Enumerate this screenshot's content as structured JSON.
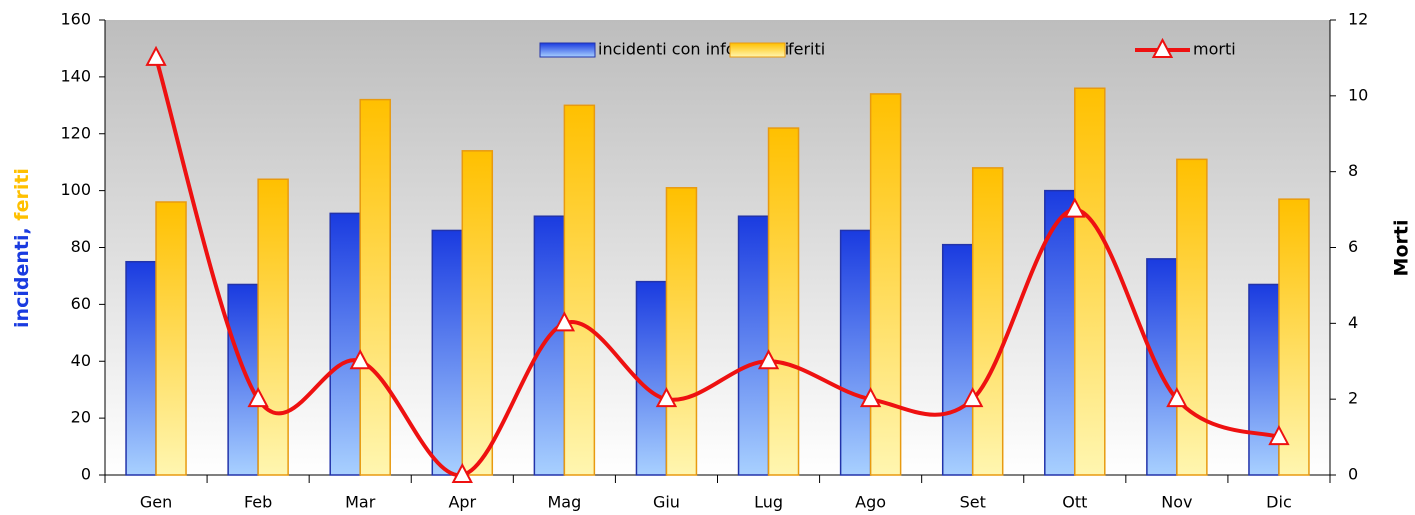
{
  "chart_data": {
    "type": "bar",
    "categories": [
      "Gen",
      "Feb",
      "Mar",
      "Apr",
      "Mag",
      "Giu",
      "Lug",
      "Ago",
      "Set",
      "Ott",
      "Nov",
      "Dic"
    ],
    "series": [
      {
        "name": "incidenti con infortunati",
        "color": "#1a3be0",
        "type": "bar",
        "values": [
          75,
          67,
          92,
          86,
          91,
          68,
          91,
          86,
          81,
          100,
          76,
          67
        ]
      },
      {
        "name": "feriti",
        "color": "#ffc000",
        "type": "bar",
        "values": [
          96,
          104,
          132,
          114,
          130,
          101,
          122,
          134,
          108,
          136,
          111,
          97
        ]
      },
      {
        "name": "morti",
        "color": "#ee1111",
        "type": "line",
        "axis": "y2",
        "values": [
          11,
          2,
          3,
          0,
          4,
          2,
          3,
          2,
          2,
          7,
          2,
          1
        ]
      }
    ],
    "y_label": [
      "incidenti,",
      "feriti"
    ],
    "y2_label": "Morti",
    "ylim": [
      0,
      160
    ],
    "yticks": [
      0,
      20,
      40,
      60,
      80,
      100,
      120,
      140,
      160
    ],
    "y2lim": [
      0,
      12
    ],
    "y2ticks": [
      0,
      2,
      4,
      6,
      8,
      10,
      12
    ],
    "legend": "top"
  }
}
